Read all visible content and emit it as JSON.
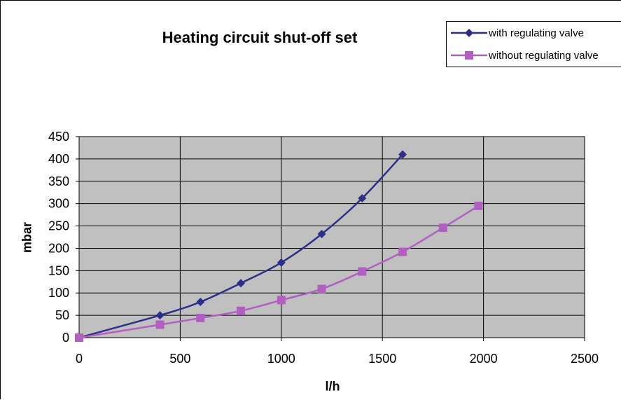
{
  "chart_data": {
    "type": "line",
    "title": "Heating circuit shut-off set",
    "xlabel": "l/h",
    "ylabel": "mbar",
    "xlim": [
      0,
      2500
    ],
    "ylim": [
      0,
      450
    ],
    "xticks": [
      "0",
      "500",
      "1000",
      "1500",
      "2000",
      "2500"
    ],
    "yticks": [
      "0",
      "50",
      "100",
      "150",
      "200",
      "250",
      "300",
      "350",
      "400",
      "450"
    ],
    "grid": true,
    "plot_background": "#c0c0c0",
    "legend_position": "top-right",
    "series": [
      {
        "name": "with regulating valve",
        "color": "#2e2e8a",
        "marker": "diamond",
        "x": [
          0,
          400,
          600,
          800,
          1000,
          1200,
          1400,
          1600
        ],
        "y": [
          0,
          50,
          80,
          122,
          168,
          232,
          312,
          410
        ]
      },
      {
        "name": "without regulating valve",
        "color": "#b25fc2",
        "marker": "square",
        "x": [
          0,
          400,
          600,
          800,
          1000,
          1200,
          1400,
          1600,
          1800,
          1975
        ],
        "y": [
          0,
          29,
          44,
          60,
          84,
          109,
          148,
          192,
          246,
          295
        ]
      }
    ]
  }
}
